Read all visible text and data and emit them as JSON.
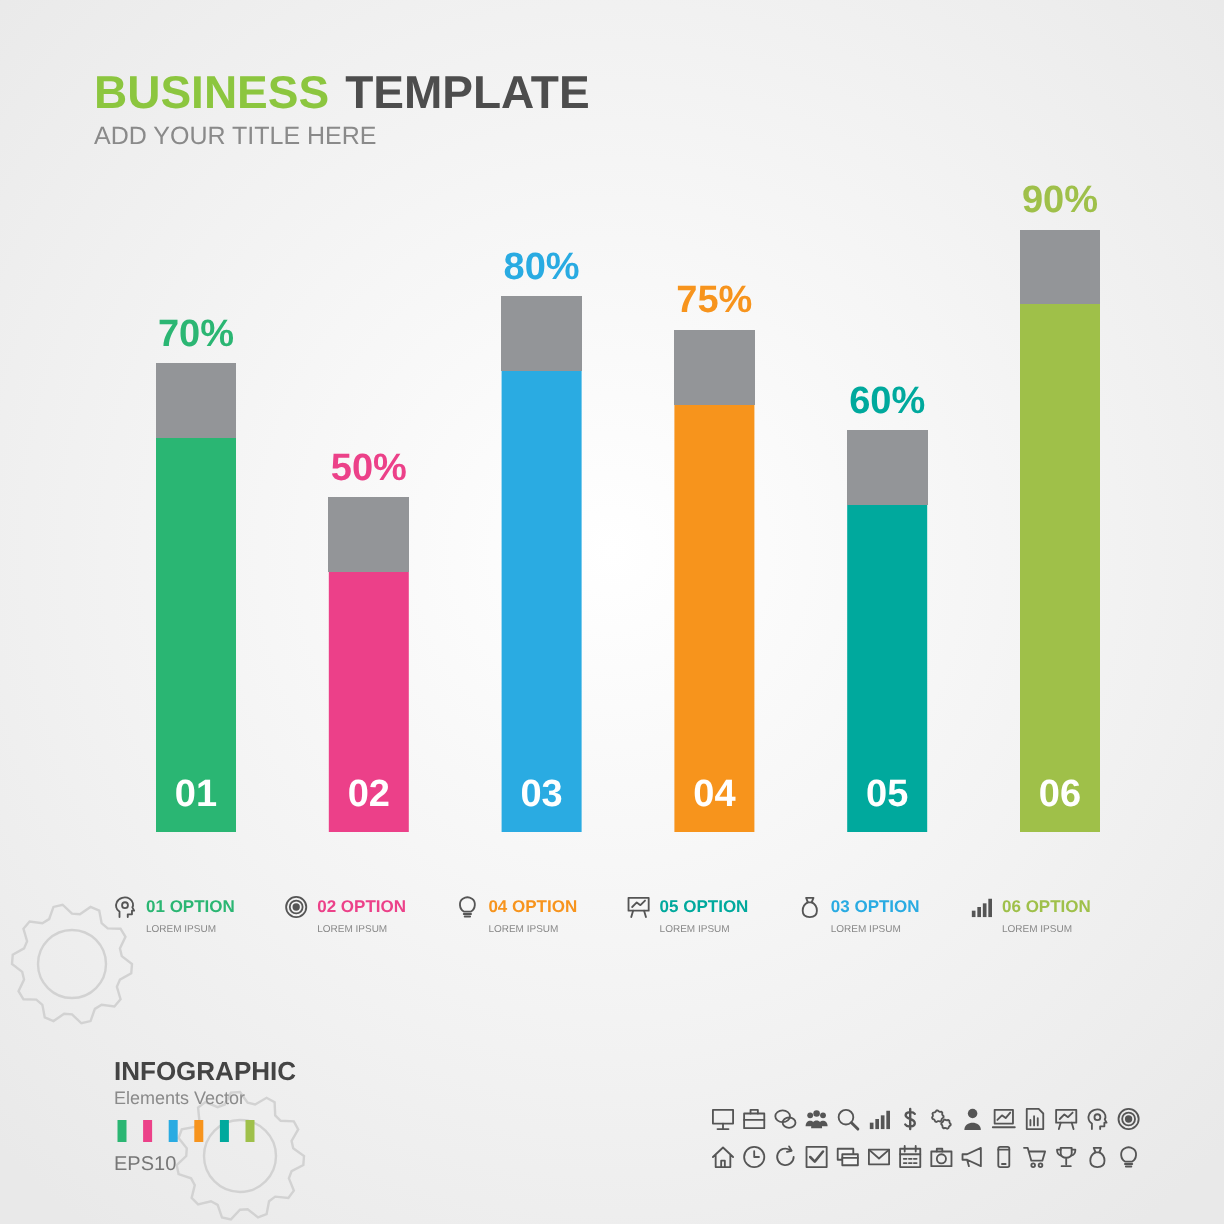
{
  "chart_data": {
    "type": "bar",
    "title": "BUSINESS TEMPLATE",
    "subtitle": "ADD YOUR TITLE HERE",
    "categories": [
      "01",
      "02",
      "03",
      "04",
      "05",
      "06"
    ],
    "values": [
      70,
      50,
      80,
      75,
      60,
      90
    ],
    "value_labels": [
      "70%",
      "50%",
      "80%",
      "75%",
      "60%",
      "90%"
    ],
    "colors": [
      "#2bb673",
      "#ec4189",
      "#29abe2",
      "#f7941d",
      "#00a99d",
      "#9fc04a"
    ],
    "annotations": [
      "01 OPTION",
      "02 OPTION",
      "04 OPTION",
      "05 OPTION",
      "03 OPTION",
      "06 OPTION",
      "LOREM IPSUM",
      "LOREM IPSUM",
      "LOREM IPSUM",
      "LOREM IPSUM",
      "LOREM IPSUM",
      "LOREM IPSUM",
      "INFOGRAPHIC",
      "Elements Vector",
      "EPS10"
    ]
  }
}
